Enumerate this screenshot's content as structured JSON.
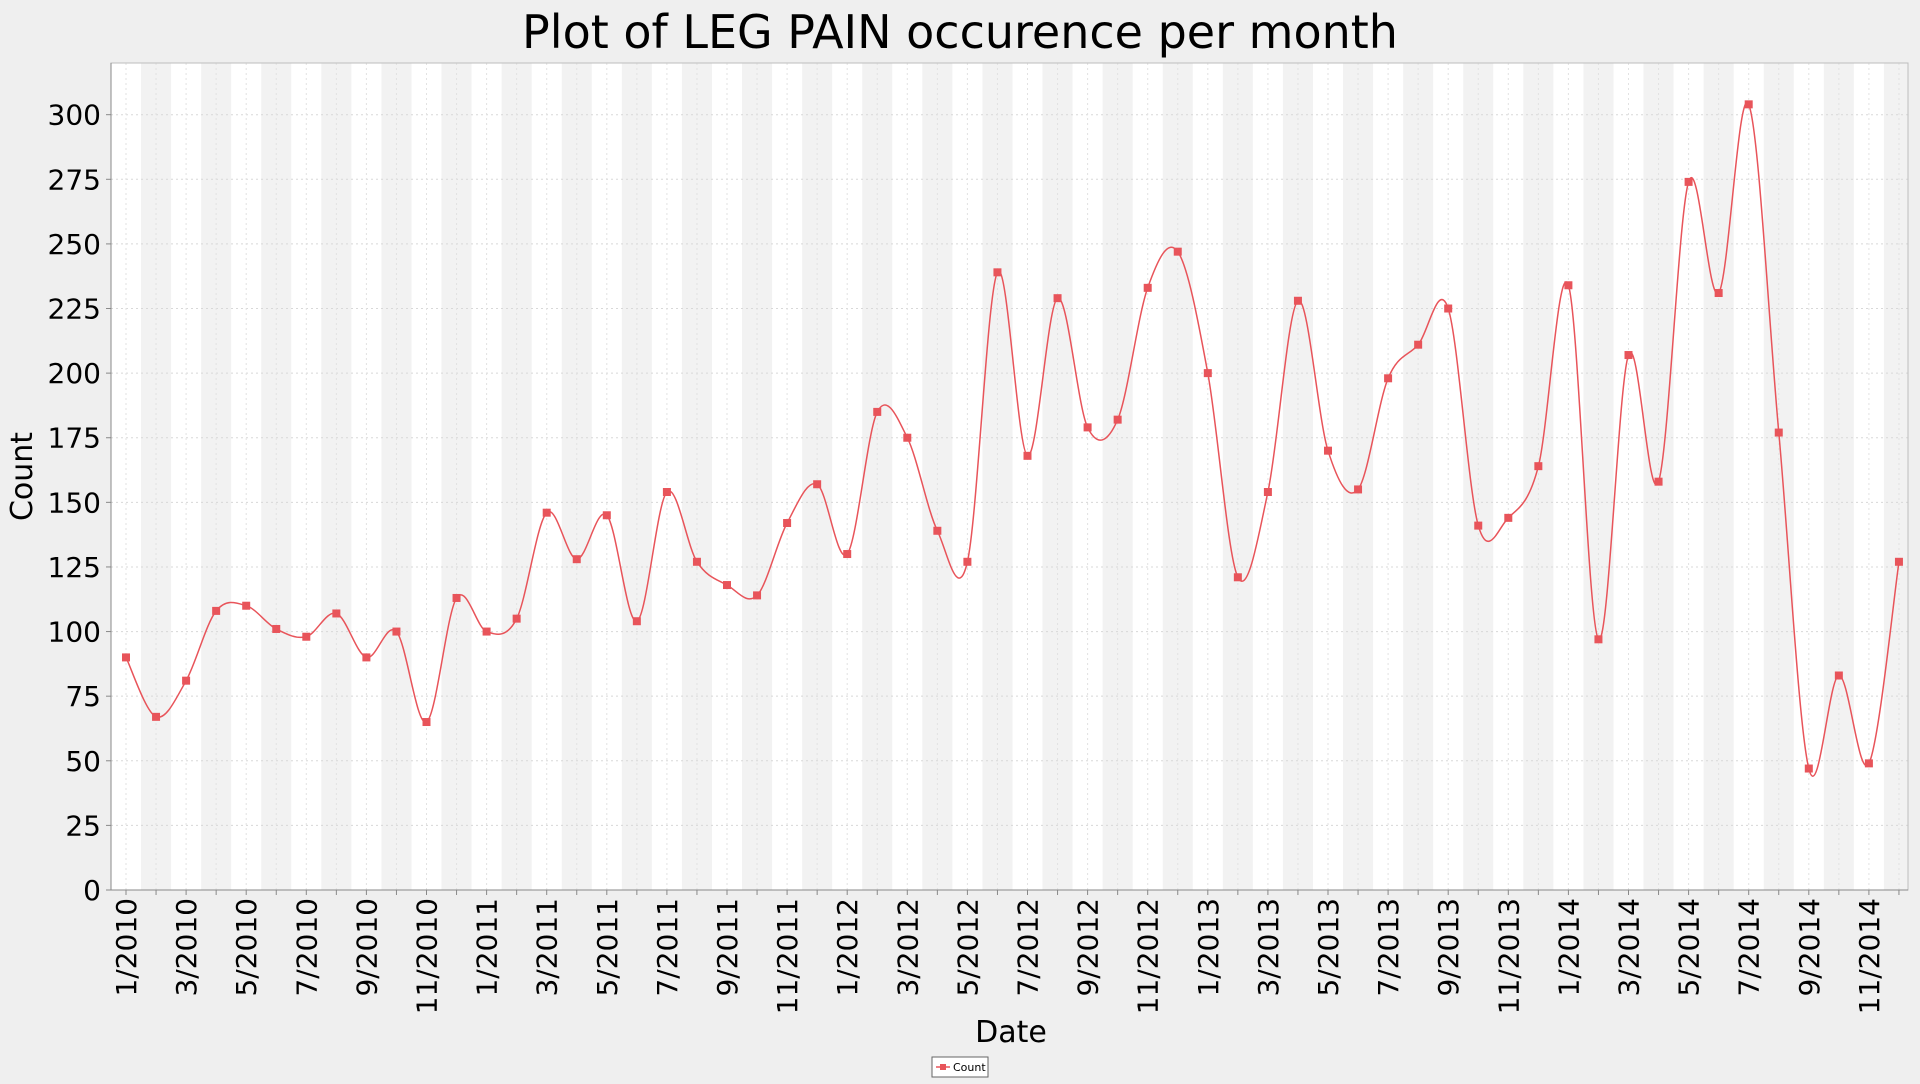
{
  "chart_data": {
    "type": "line",
    "title": "Plot of LEG PAIN occurence per month",
    "xlabel": "Date",
    "ylabel": "Count",
    "ylim": [
      0,
      320
    ],
    "yticks": [
      0,
      25,
      50,
      75,
      100,
      125,
      150,
      175,
      200,
      225,
      250,
      275,
      300
    ],
    "x_ticks": [
      "1/2010",
      "3/2010",
      "5/2010",
      "7/2010",
      "9/2010",
      "11/2010",
      "1/2011",
      "3/2011",
      "5/2011",
      "7/2011",
      "9/2011",
      "11/2011",
      "1/2012",
      "3/2012",
      "5/2012",
      "7/2012",
      "9/2012",
      "11/2012",
      "1/2013",
      "3/2013",
      "5/2013",
      "7/2013",
      "9/2013",
      "11/2013",
      "1/2014",
      "3/2014",
      "5/2014",
      "7/2014",
      "9/2014",
      "11/2014"
    ],
    "grid": true,
    "legend_position": "bottom-center",
    "series": [
      {
        "name": "Count",
        "color": "#e8545a",
        "x": [
          "1/2010",
          "2/2010",
          "3/2010",
          "4/2010",
          "5/2010",
          "6/2010",
          "7/2010",
          "8/2010",
          "9/2010",
          "10/2010",
          "11/2010",
          "12/2010",
          "1/2011",
          "2/2011",
          "3/2011",
          "4/2011",
          "5/2011",
          "6/2011",
          "7/2011",
          "8/2011",
          "9/2011",
          "10/2011",
          "11/2011",
          "12/2011",
          "1/2012",
          "2/2012",
          "3/2012",
          "4/2012",
          "5/2012",
          "6/2012",
          "7/2012",
          "8/2012",
          "9/2012",
          "10/2012",
          "11/2012",
          "12/2012",
          "1/2013",
          "2/2013",
          "3/2013",
          "4/2013",
          "5/2013",
          "6/2013",
          "7/2013",
          "8/2013",
          "9/2013",
          "10/2013",
          "11/2013",
          "12/2013",
          "1/2014",
          "2/2014",
          "3/2014",
          "4/2014",
          "5/2014",
          "6/2014",
          "7/2014",
          "8/2014",
          "9/2014",
          "10/2014",
          "11/2014",
          "12/2014"
        ],
        "values": [
          90,
          67,
          81,
          108,
          110,
          101,
          98,
          107,
          90,
          100,
          65,
          113,
          100,
          105,
          146,
          128,
          145,
          104,
          154,
          127,
          118,
          114,
          142,
          157,
          130,
          185,
          175,
          139,
          127,
          239,
          168,
          229,
          179,
          182,
          233,
          247,
          200,
          121,
          154,
          228,
          170,
          155,
          198,
          211,
          225,
          141,
          144,
          164,
          234,
          97,
          207,
          158,
          274,
          231,
          304,
          177,
          47,
          83,
          49,
          127
        ]
      }
    ]
  }
}
